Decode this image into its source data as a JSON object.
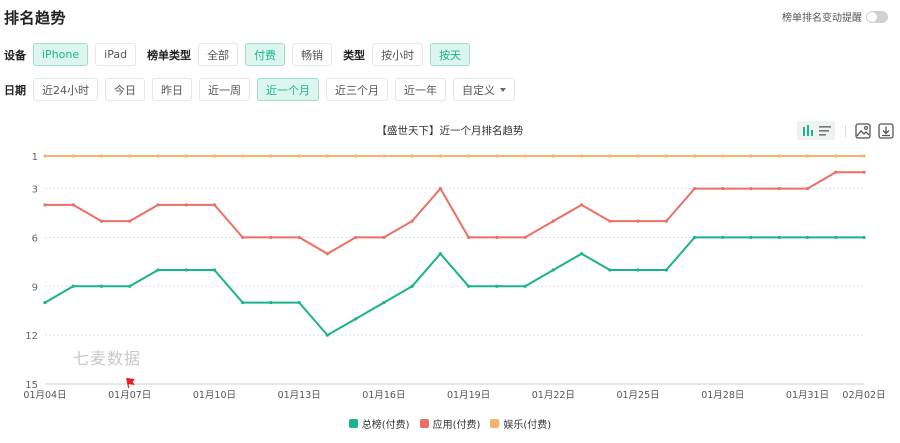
{
  "header": {
    "title": "排名趋势",
    "alert_toggle_label": "榜单排名变动提醒",
    "alert_toggle_on": false
  },
  "filters": {
    "device": {
      "label": "设备",
      "options": [
        "iPhone",
        "iPad"
      ],
      "selected": "iPhone"
    },
    "chart_type": {
      "label": "榜单类型",
      "options": [
        "全部",
        "付费",
        "畅销"
      ],
      "selected": "付费"
    },
    "type": {
      "label": "类型",
      "options": [
        "按小时",
        "按天"
      ],
      "selected": "按天"
    },
    "date": {
      "label": "日期",
      "options": [
        "近24小时",
        "今日",
        "昨日",
        "近一周",
        "近一个月",
        "近三个月",
        "近一年",
        "自定义"
      ],
      "selected": "近一个月"
    }
  },
  "toolbar": {
    "icons": [
      "line-chart-icon",
      "list-icon",
      "image-save-icon",
      "download-icon"
    ]
  },
  "watermark": "七麦数据",
  "colors": {
    "accent": "#18b68e",
    "total": "#19b38c",
    "app": "#ec6e64",
    "entertainment": "#f7b36b",
    "flag": "#e61e1e"
  },
  "chart_data": {
    "type": "line",
    "title": "【盛世天下】近一个月排名趋势",
    "xlabel": "",
    "ylabel": "",
    "y_inverted": true,
    "ylim": [
      1,
      15
    ],
    "yticks": [
      1,
      3,
      6,
      9,
      12,
      15
    ],
    "grid": true,
    "legend_position": "bottom",
    "x_tick_labels": [
      "01月04日",
      "01月07日",
      "01月10日",
      "01月13日",
      "01月16日",
      "01月19日",
      "01月22日",
      "01月25日",
      "01月28日",
      "01月31日",
      "02月02日"
    ],
    "x": [
      "01月04日",
      "01月05日",
      "01月06日",
      "01月07日",
      "01月08日",
      "01月09日",
      "01月10日",
      "01月11日",
      "01月12日",
      "01月13日",
      "01月14日",
      "01月15日",
      "01月16日",
      "01月17日",
      "01月18日",
      "01月19日",
      "01月20日",
      "01月21日",
      "01月22日",
      "01月23日",
      "01月24日",
      "01月25日",
      "01月26日",
      "01月27日",
      "01月28日",
      "01月29日",
      "01月30日",
      "01月31日",
      "02月01日",
      "02月02日"
    ],
    "series": [
      {
        "name": "总榜(付费)",
        "color": "#19b38c",
        "values": [
          10,
          9,
          9,
          9,
          8,
          8,
          8,
          10,
          10,
          10,
          12,
          11,
          10,
          9,
          7,
          9,
          9,
          9,
          8,
          7,
          8,
          8,
          8,
          6,
          6,
          6,
          6,
          6,
          6,
          6
        ]
      },
      {
        "name": "应用(付费)",
        "color": "#ec6e64",
        "values": [
          4,
          4,
          5,
          5,
          4,
          4,
          4,
          6,
          6,
          6,
          7,
          6,
          6,
          5,
          3,
          6,
          6,
          6,
          5,
          4,
          5,
          5,
          5,
          3,
          3,
          3,
          3,
          3,
          2,
          2
        ]
      },
      {
        "name": "娱乐(付费)",
        "color": "#f7b36b",
        "values": [
          1,
          1,
          1,
          1,
          1,
          1,
          1,
          1,
          1,
          1,
          1,
          1,
          1,
          1,
          1,
          1,
          1,
          1,
          1,
          1,
          1,
          1,
          1,
          1,
          1,
          1,
          1,
          1,
          1,
          1
        ]
      }
    ],
    "annotations": [
      {
        "type": "flag",
        "x": "01月07日"
      }
    ]
  }
}
